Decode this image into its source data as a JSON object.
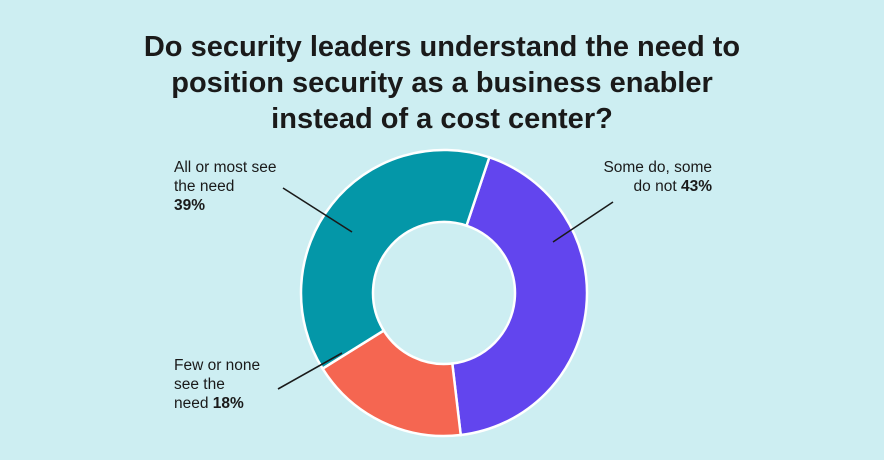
{
  "chart_data": {
    "type": "pie",
    "variant": "donut",
    "title_lines": [
      "Do security leaders understand the need to",
      "position security as a business enabler",
      "instead of a cost center?"
    ],
    "slices": [
      {
        "label_lines": [
          "Some do, some",
          "do not"
        ],
        "value": 43,
        "value_text": "43%",
        "color": "#6245ee"
      },
      {
        "label_lines": [
          "Few or none",
          "see the",
          "need"
        ],
        "value": 18,
        "value_text": "18%",
        "color": "#f56651"
      },
      {
        "label_lines": [
          "All or most see",
          "the need"
        ],
        "value": 39,
        "value_text": "39%",
        "color": "#0497a8"
      }
    ],
    "legend": "none",
    "background": "#cdeef2"
  }
}
